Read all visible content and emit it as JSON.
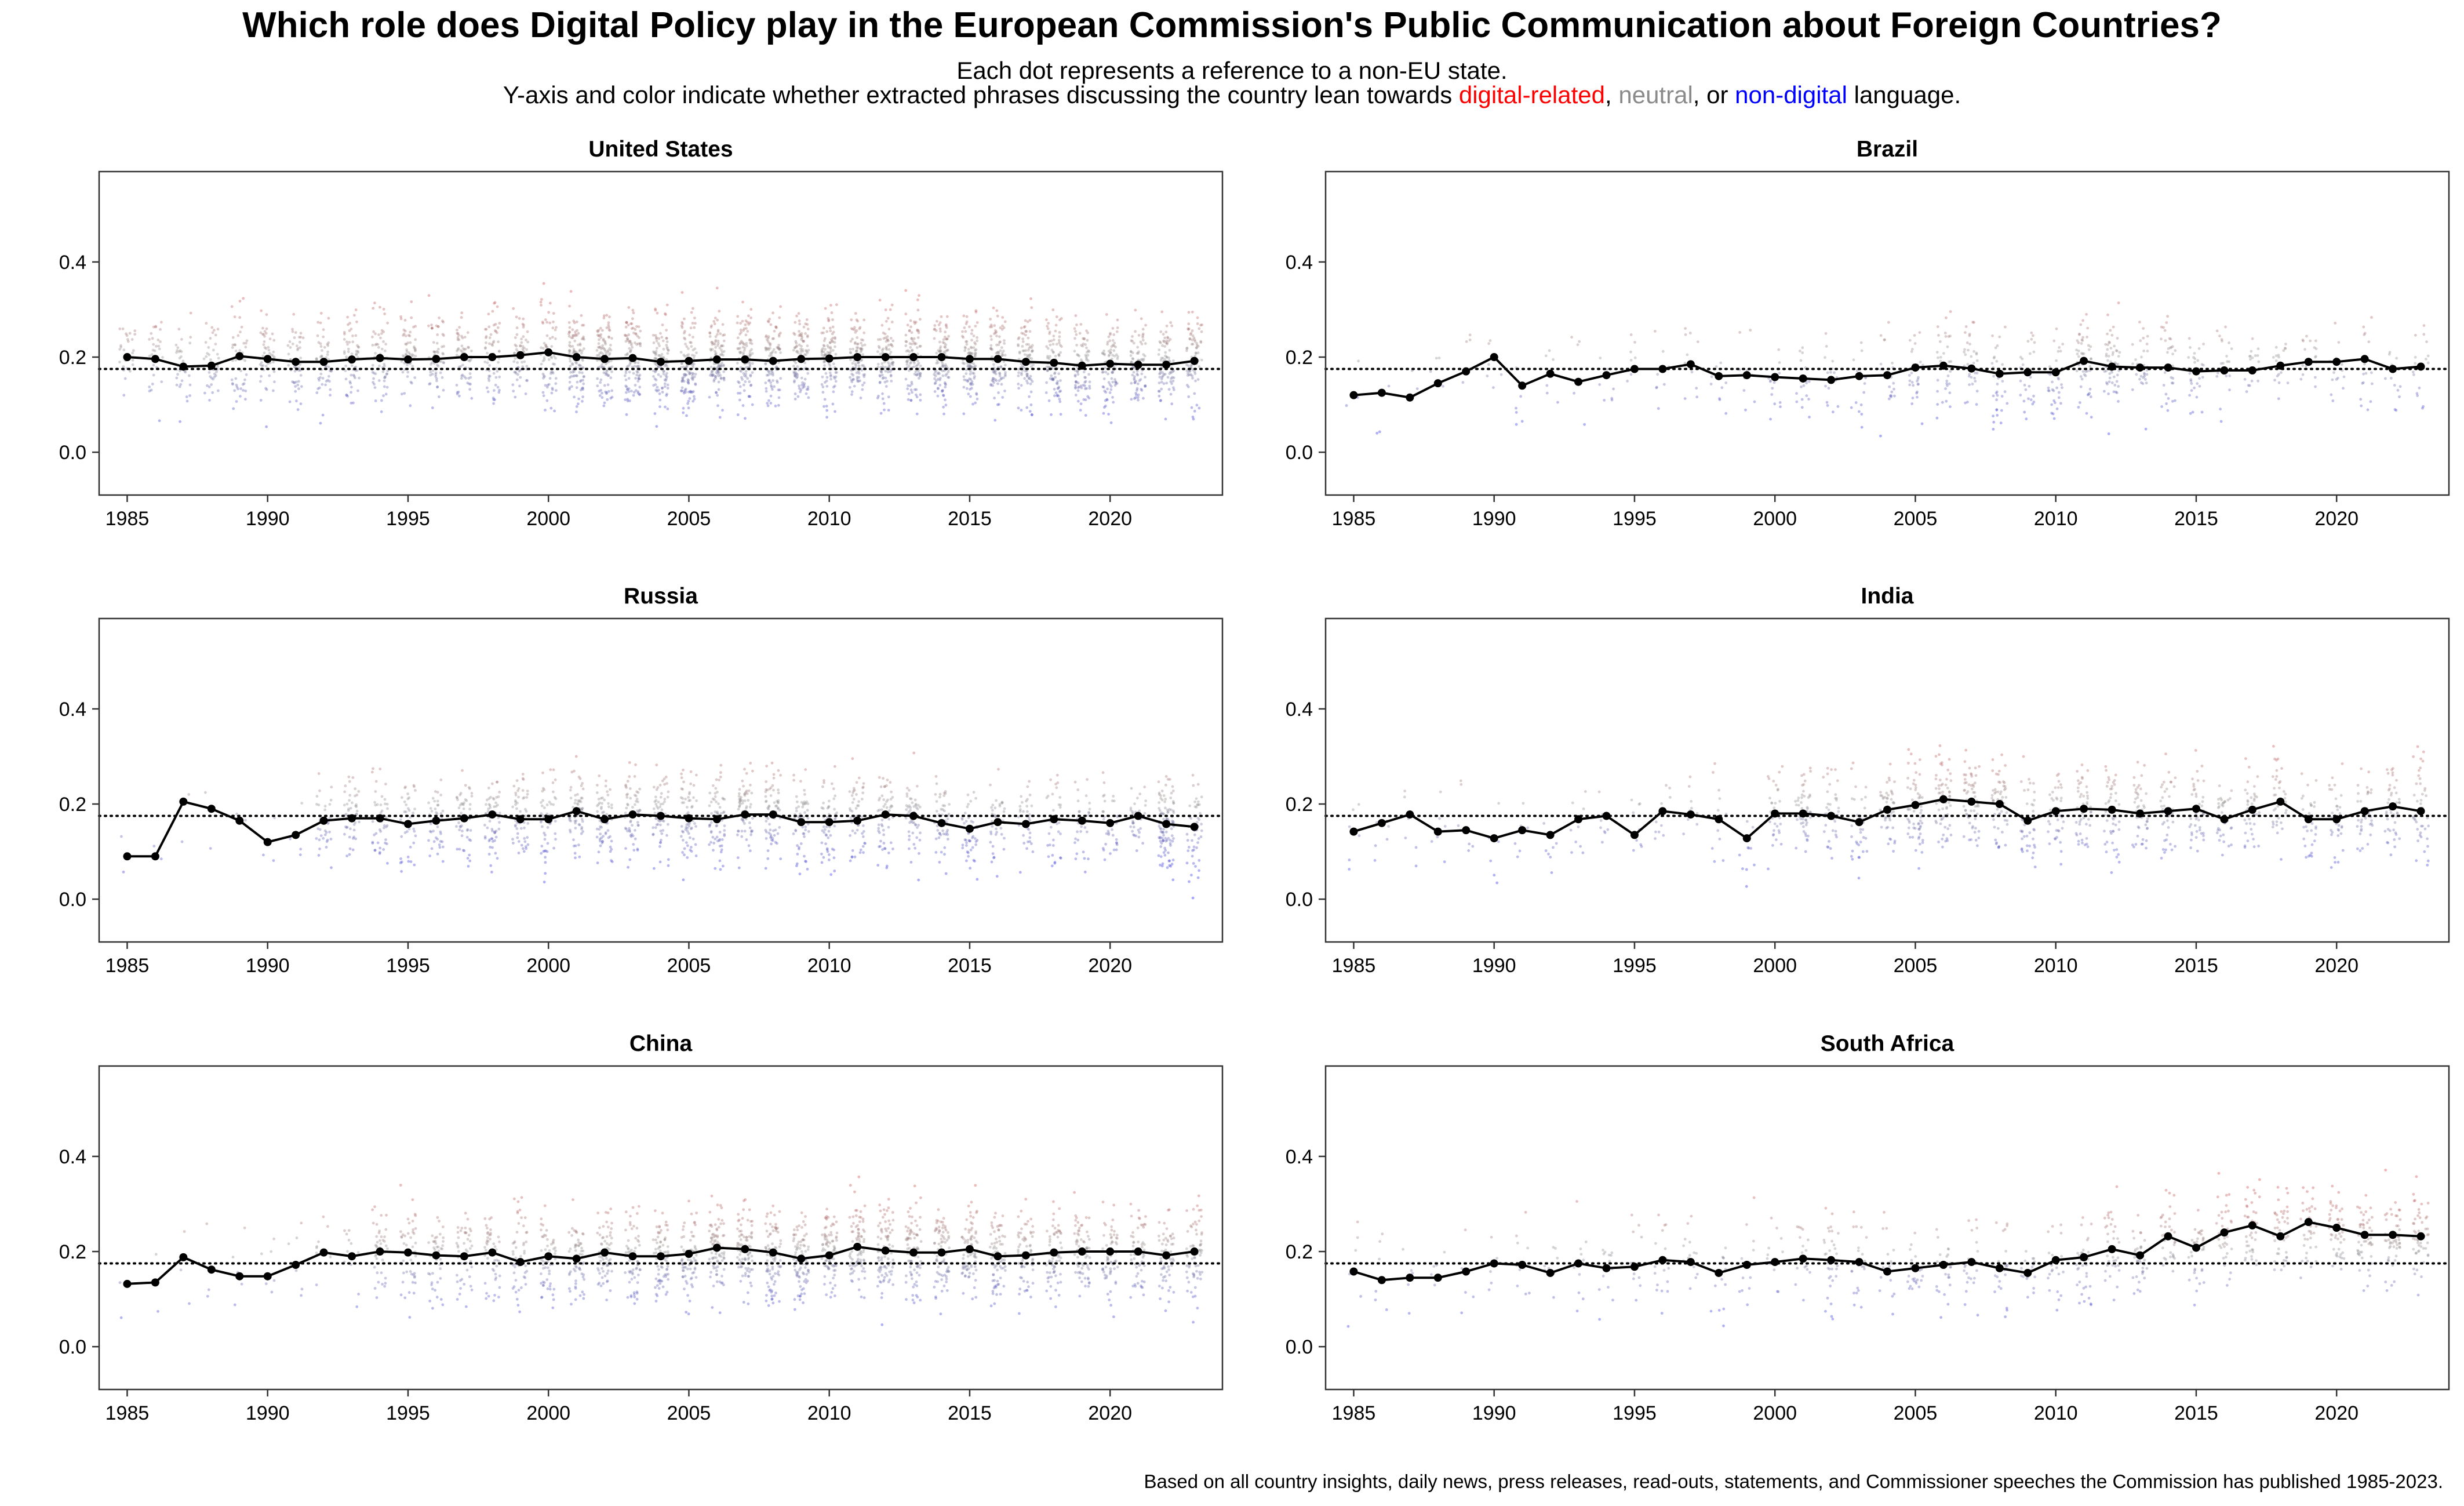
{
  "title": "Which role does Digital Policy play in the European Commission's Public Communication about Foreign Countries?",
  "subtitle_line1": "Each dot represents a reference to a non-EU state.",
  "subtitle_line2": {
    "prefix": "Y-axis and color indicate whether extracted phrases discussing the country lean towards ",
    "digital": "digital-related",
    "sep1": ", ",
    "neutral": "neutral",
    "sep2": ", or ",
    "nondigital": "non-digital",
    "suffix": " language."
  },
  "caption": "Based on all country insights, daily news, press releases, read-outs, statements, and Commissioner speeches the Commission has published 1985-2023.",
  "colors": {
    "digital": "#ff0000",
    "neutral": "#8a8a8a",
    "nondigital": "#0000ff",
    "line": "#000000"
  },
  "chart_data": [
    {
      "type": "scatter",
      "title": "United States",
      "xlim": [
        1984,
        2024
      ],
      "ylim": [
        -0.09,
        0.59
      ],
      "x_ticks": [
        1985,
        1990,
        1995,
        2000,
        2005,
        2010,
        2015,
        2020
      ],
      "y_ticks": [
        0.0,
        0.2,
        0.4
      ],
      "reference_line": 0.175,
      "density": [
        0.25,
        0.3,
        0.3,
        0.35,
        0.45,
        0.45,
        0.45,
        0.5,
        0.55,
        0.55,
        0.55,
        0.55,
        0.55,
        0.55,
        0.55,
        0.6,
        1.0,
        1.0,
        1.0,
        1.0,
        1.0,
        1.0,
        0.95,
        0.95,
        0.95,
        0.9,
        0.9,
        0.9,
        0.95,
        0.95,
        0.95,
        0.9,
        0.85,
        0.8,
        0.75,
        0.75,
        0.75,
        0.75,
        0.7
      ],
      "mean_line": {
        "x": [
          1985,
          1986,
          1987,
          1988,
          1989,
          1990,
          1991,
          1992,
          1993,
          1994,
          1995,
          1996,
          1997,
          1998,
          1999,
          2000,
          2001,
          2002,
          2003,
          2004,
          2005,
          2006,
          2007,
          2008,
          2009,
          2010,
          2011,
          2012,
          2013,
          2014,
          2015,
          2016,
          2017,
          2018,
          2019,
          2020,
          2021,
          2022,
          2023
        ],
        "y": [
          0.2,
          0.196,
          0.18,
          0.182,
          0.202,
          0.196,
          0.19,
          0.19,
          0.195,
          0.198,
          0.195,
          0.196,
          0.2,
          0.2,
          0.204,
          0.21,
          0.2,
          0.196,
          0.198,
          0.19,
          0.192,
          0.195,
          0.195,
          0.192,
          0.196,
          0.197,
          0.2,
          0.2,
          0.2,
          0.2,
          0.196,
          0.196,
          0.19,
          0.188,
          0.182,
          0.186,
          0.184,
          0.184,
          0.192
        ]
      }
    },
    {
      "type": "scatter",
      "title": "Brazil",
      "xlim": [
        1984,
        2024
      ],
      "ylim": [
        -0.09,
        0.59
      ],
      "x_ticks": [
        1985,
        1990,
        1995,
        2000,
        2005,
        2010,
        2015,
        2020
      ],
      "y_ticks": [
        0.0,
        0.2,
        0.4
      ],
      "reference_line": 0.175,
      "density": [
        0.03,
        0.03,
        0.03,
        0.04,
        0.04,
        0.05,
        0.05,
        0.05,
        0.06,
        0.06,
        0.07,
        0.08,
        0.1,
        0.08,
        0.1,
        0.12,
        0.15,
        0.15,
        0.15,
        0.2,
        0.25,
        0.3,
        0.3,
        0.3,
        0.25,
        0.3,
        0.45,
        0.5,
        0.3,
        0.3,
        0.25,
        0.2,
        0.15,
        0.15,
        0.15,
        0.15,
        0.15,
        0.12,
        0.15
      ],
      "mean_line": {
        "x": [
          1985,
          1986,
          1987,
          1988,
          1989,
          1990,
          1991,
          1992,
          1993,
          1994,
          1995,
          1996,
          1997,
          1998,
          1999,
          2000,
          2001,
          2002,
          2003,
          2004,
          2005,
          2006,
          2007,
          2008,
          2009,
          2010,
          2011,
          2012,
          2013,
          2014,
          2015,
          2016,
          2017,
          2018,
          2019,
          2020,
          2021,
          2022,
          2023
        ],
        "y": [
          0.12,
          0.125,
          0.115,
          0.145,
          0.17,
          0.2,
          0.14,
          0.165,
          0.148,
          0.162,
          0.175,
          0.175,
          0.185,
          0.16,
          0.162,
          0.158,
          0.155,
          0.152,
          0.16,
          0.162,
          0.178,
          0.182,
          0.176,
          0.165,
          0.168,
          0.168,
          0.192,
          0.18,
          0.178,
          0.178,
          0.17,
          0.172,
          0.172,
          0.182,
          0.19,
          0.19,
          0.196,
          0.175,
          0.18
        ]
      }
    },
    {
      "type": "scatter",
      "title": "Russia",
      "xlim": [
        1984,
        2024
      ],
      "ylim": [
        -0.09,
        0.59
      ],
      "x_ticks": [
        1985,
        1990,
        1995,
        2000,
        2005,
        2010,
        2015,
        2020
      ],
      "y_ticks": [
        0.0,
        0.2,
        0.4
      ],
      "reference_line": 0.175,
      "density": [
        0.02,
        0.02,
        0.02,
        0.02,
        0.02,
        0.03,
        0.04,
        0.35,
        0.4,
        0.4,
        0.35,
        0.4,
        0.45,
        0.5,
        0.5,
        0.5,
        0.6,
        0.55,
        0.55,
        0.55,
        0.55,
        0.6,
        0.6,
        0.6,
        0.5,
        0.5,
        0.5,
        0.5,
        0.5,
        0.45,
        0.4,
        0.35,
        0.3,
        0.3,
        0.3,
        0.3,
        0.3,
        1.0,
        0.5
      ],
      "mean_line": {
        "x": [
          1985,
          1986,
          1987,
          1988,
          1989,
          1990,
          1991,
          1992,
          1993,
          1994,
          1995,
          1996,
          1997,
          1998,
          1999,
          2000,
          2001,
          2002,
          2003,
          2004,
          2005,
          2006,
          2007,
          2008,
          2009,
          2010,
          2011,
          2012,
          2013,
          2014,
          2015,
          2016,
          2017,
          2018,
          2019,
          2020,
          2021,
          2022,
          2023
        ],
        "y": [
          0.09,
          0.09,
          0.205,
          0.19,
          0.165,
          0.12,
          0.135,
          0.165,
          0.17,
          0.17,
          0.158,
          0.165,
          0.17,
          0.178,
          0.168,
          0.168,
          0.185,
          0.168,
          0.178,
          0.175,
          0.17,
          0.168,
          0.178,
          0.178,
          0.162,
          0.162,
          0.165,
          0.178,
          0.175,
          0.16,
          0.148,
          0.162,
          0.158,
          0.168,
          0.165,
          0.16,
          0.175,
          0.158,
          0.152
        ]
      }
    },
    {
      "type": "scatter",
      "title": "India",
      "xlim": [
        1984,
        2024
      ],
      "ylim": [
        -0.09,
        0.59
      ],
      "x_ticks": [
        1985,
        1990,
        1995,
        2000,
        2005,
        2010,
        2015,
        2020
      ],
      "y_ticks": [
        0.0,
        0.2,
        0.4
      ],
      "reference_line": 0.175,
      "density": [
        0.05,
        0.05,
        0.05,
        0.05,
        0.05,
        0.05,
        0.05,
        0.06,
        0.08,
        0.08,
        0.08,
        0.1,
        0.1,
        0.1,
        0.1,
        0.3,
        0.45,
        0.35,
        0.3,
        0.45,
        0.55,
        0.55,
        0.55,
        0.5,
        0.35,
        0.35,
        0.4,
        0.45,
        0.4,
        0.35,
        0.4,
        0.35,
        0.35,
        0.35,
        0.3,
        0.3,
        0.35,
        0.4,
        0.4
      ],
      "mean_line": {
        "x": [
          1985,
          1986,
          1987,
          1988,
          1989,
          1990,
          1991,
          1992,
          1993,
          1994,
          1995,
          1996,
          1997,
          1998,
          1999,
          2000,
          2001,
          2002,
          2003,
          2004,
          2005,
          2006,
          2007,
          2008,
          2009,
          2010,
          2011,
          2012,
          2013,
          2014,
          2015,
          2016,
          2017,
          2018,
          2019,
          2020,
          2021,
          2022,
          2023
        ],
        "y": [
          0.142,
          0.16,
          0.178,
          0.142,
          0.145,
          0.128,
          0.145,
          0.135,
          0.168,
          0.175,
          0.135,
          0.185,
          0.178,
          0.168,
          0.128,
          0.18,
          0.18,
          0.175,
          0.162,
          0.188,
          0.198,
          0.21,
          0.205,
          0.2,
          0.165,
          0.185,
          0.19,
          0.188,
          0.18,
          0.185,
          0.19,
          0.168,
          0.188,
          0.205,
          0.168,
          0.168,
          0.185,
          0.195,
          0.185
        ]
      }
    },
    {
      "type": "scatter",
      "title": "China",
      "xlim": [
        1984,
        2024
      ],
      "ylim": [
        -0.09,
        0.59
      ],
      "x_ticks": [
        1985,
        1990,
        1995,
        2000,
        2005,
        2010,
        2015,
        2020
      ],
      "y_ticks": [
        0.0,
        0.2,
        0.4
      ],
      "reference_line": 0.175,
      "density": [
        0.02,
        0.02,
        0.03,
        0.04,
        0.05,
        0.05,
        0.06,
        0.08,
        0.1,
        0.35,
        0.4,
        0.4,
        0.4,
        0.45,
        0.45,
        0.5,
        0.55,
        0.6,
        0.6,
        0.65,
        0.7,
        0.75,
        0.8,
        0.8,
        0.75,
        0.75,
        0.75,
        0.75,
        0.75,
        0.7,
        0.7,
        0.65,
        0.6,
        0.6,
        0.6,
        0.55,
        0.55,
        0.55,
        0.6
      ],
      "mean_line": {
        "x": [
          1985,
          1986,
          1987,
          1988,
          1989,
          1990,
          1991,
          1992,
          1993,
          1994,
          1995,
          1996,
          1997,
          1998,
          1999,
          2000,
          2001,
          2002,
          2003,
          2004,
          2005,
          2006,
          2007,
          2008,
          2009,
          2010,
          2011,
          2012,
          2013,
          2014,
          2015,
          2016,
          2017,
          2018,
          2019,
          2020,
          2021,
          2022,
          2023
        ],
        "y": [
          0.132,
          0.135,
          0.188,
          0.162,
          0.148,
          0.148,
          0.172,
          0.198,
          0.19,
          0.2,
          0.198,
          0.192,
          0.19,
          0.198,
          0.178,
          0.19,
          0.185,
          0.198,
          0.19,
          0.19,
          0.195,
          0.208,
          0.205,
          0.198,
          0.185,
          0.192,
          0.21,
          0.202,
          0.198,
          0.198,
          0.205,
          0.19,
          0.192,
          0.198,
          0.2,
          0.2,
          0.2,
          0.192,
          0.2
        ]
      }
    },
    {
      "type": "scatter",
      "title": "South Africa",
      "xlim": [
        1984,
        2024
      ],
      "ylim": [
        -0.09,
        0.59
      ],
      "x_ticks": [
        1985,
        1990,
        1995,
        2000,
        2005,
        2010,
        2015,
        2020
      ],
      "y_ticks": [
        0.0,
        0.2,
        0.4
      ],
      "reference_line": 0.175,
      "density": [
        0.05,
        0.05,
        0.05,
        0.05,
        0.05,
        0.05,
        0.08,
        0.08,
        0.1,
        0.12,
        0.12,
        0.15,
        0.15,
        0.12,
        0.12,
        0.12,
        0.15,
        0.3,
        0.2,
        0.15,
        0.2,
        0.2,
        0.2,
        0.2,
        0.15,
        0.2,
        0.3,
        0.3,
        0.3,
        0.3,
        0.3,
        0.35,
        0.35,
        0.35,
        0.35,
        0.4,
        0.45,
        0.45,
        0.45
      ],
      "mean_line": {
        "x": [
          1985,
          1986,
          1987,
          1988,
          1989,
          1990,
          1991,
          1992,
          1993,
          1994,
          1995,
          1996,
          1997,
          1998,
          1999,
          2000,
          2001,
          2002,
          2003,
          2004,
          2005,
          2006,
          2007,
          2008,
          2009,
          2010,
          2011,
          2012,
          2013,
          2014,
          2015,
          2016,
          2017,
          2018,
          2019,
          2020,
          2021,
          2022,
          2023
        ],
        "y": [
          0.158,
          0.14,
          0.145,
          0.145,
          0.158,
          0.175,
          0.172,
          0.155,
          0.175,
          0.165,
          0.168,
          0.182,
          0.178,
          0.155,
          0.172,
          0.178,
          0.185,
          0.182,
          0.178,
          0.158,
          0.165,
          0.172,
          0.178,
          0.165,
          0.155,
          0.182,
          0.188,
          0.205,
          0.192,
          0.232,
          0.208,
          0.24,
          0.255,
          0.232,
          0.262,
          0.25,
          0.235,
          0.235,
          0.232
        ]
      }
    }
  ]
}
